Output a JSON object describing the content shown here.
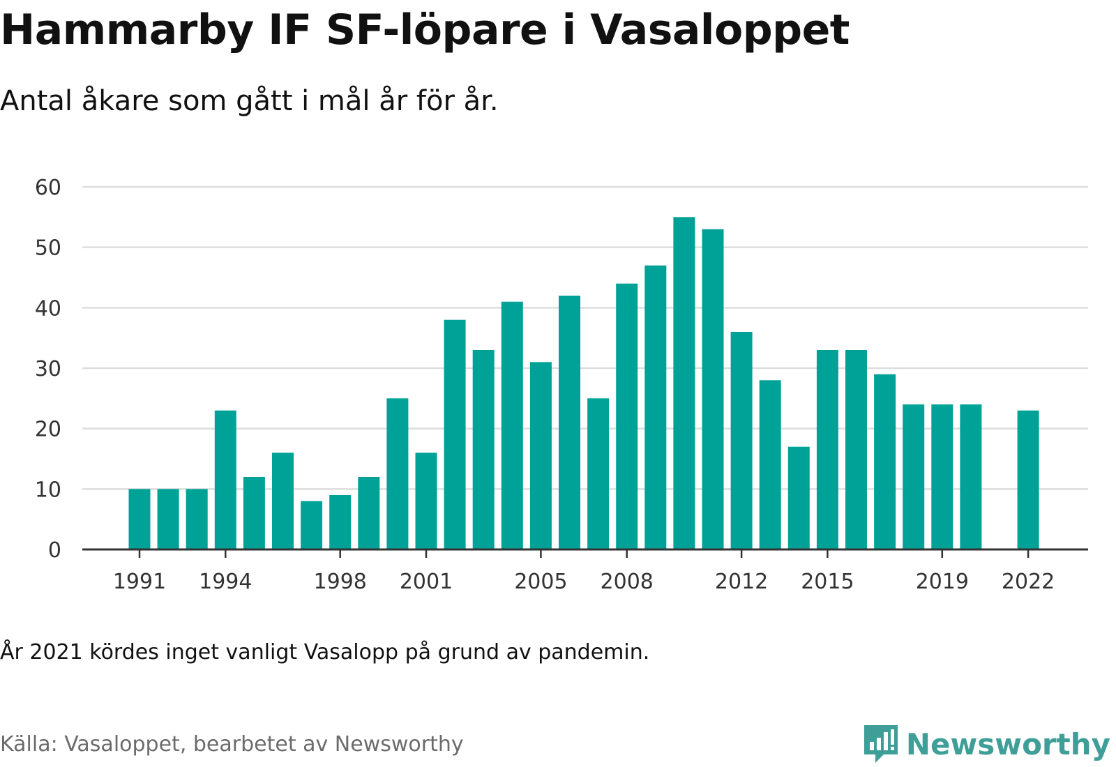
{
  "title": "Hammarby IF SF-löpare i Vasaloppet",
  "subtitle": "Antal åkare som gått i mål år för år.",
  "note": "År 2021 kördes inget vanligt Vasalopp på grund av pandemin.",
  "source": "Källa: Vasaloppet, bearbetet av Newsworthy",
  "logo": {
    "name": "Newsworthy",
    "icon": "newsworthy-logo-icon",
    "color": "#3f9e98"
  },
  "chart_data": {
    "type": "bar",
    "categories": [
      "1991",
      "1992",
      "1993",
      "1994",
      "1995",
      "1996",
      "1997",
      "1998",
      "1999",
      "2000",
      "2001",
      "2002",
      "2003",
      "2004",
      "2005",
      "2006",
      "2007",
      "2008",
      "2009",
      "2010",
      "2011",
      "2012",
      "2013",
      "2014",
      "2015",
      "2016",
      "2017",
      "2018",
      "2019",
      "2020",
      "2021",
      "2022"
    ],
    "values": [
      10,
      10,
      10,
      23,
      12,
      16,
      8,
      9,
      12,
      25,
      16,
      38,
      33,
      41,
      31,
      42,
      25,
      44,
      47,
      55,
      53,
      36,
      28,
      17,
      33,
      33,
      29,
      24,
      24,
      24,
      null,
      23
    ],
    "x_tick_labels": [
      "1991",
      "1994",
      "1998",
      "2001",
      "2005",
      "2008",
      "2012",
      "2015",
      "2019",
      "2022"
    ],
    "y_ticks": [
      0,
      10,
      20,
      30,
      40,
      50,
      60
    ],
    "ylim": [
      0,
      60
    ],
    "xlabel": "",
    "ylabel": "",
    "grid": true,
    "bar_color": "#00a298",
    "gridline_color": "#dddddd",
    "axis_color": "#333333"
  }
}
